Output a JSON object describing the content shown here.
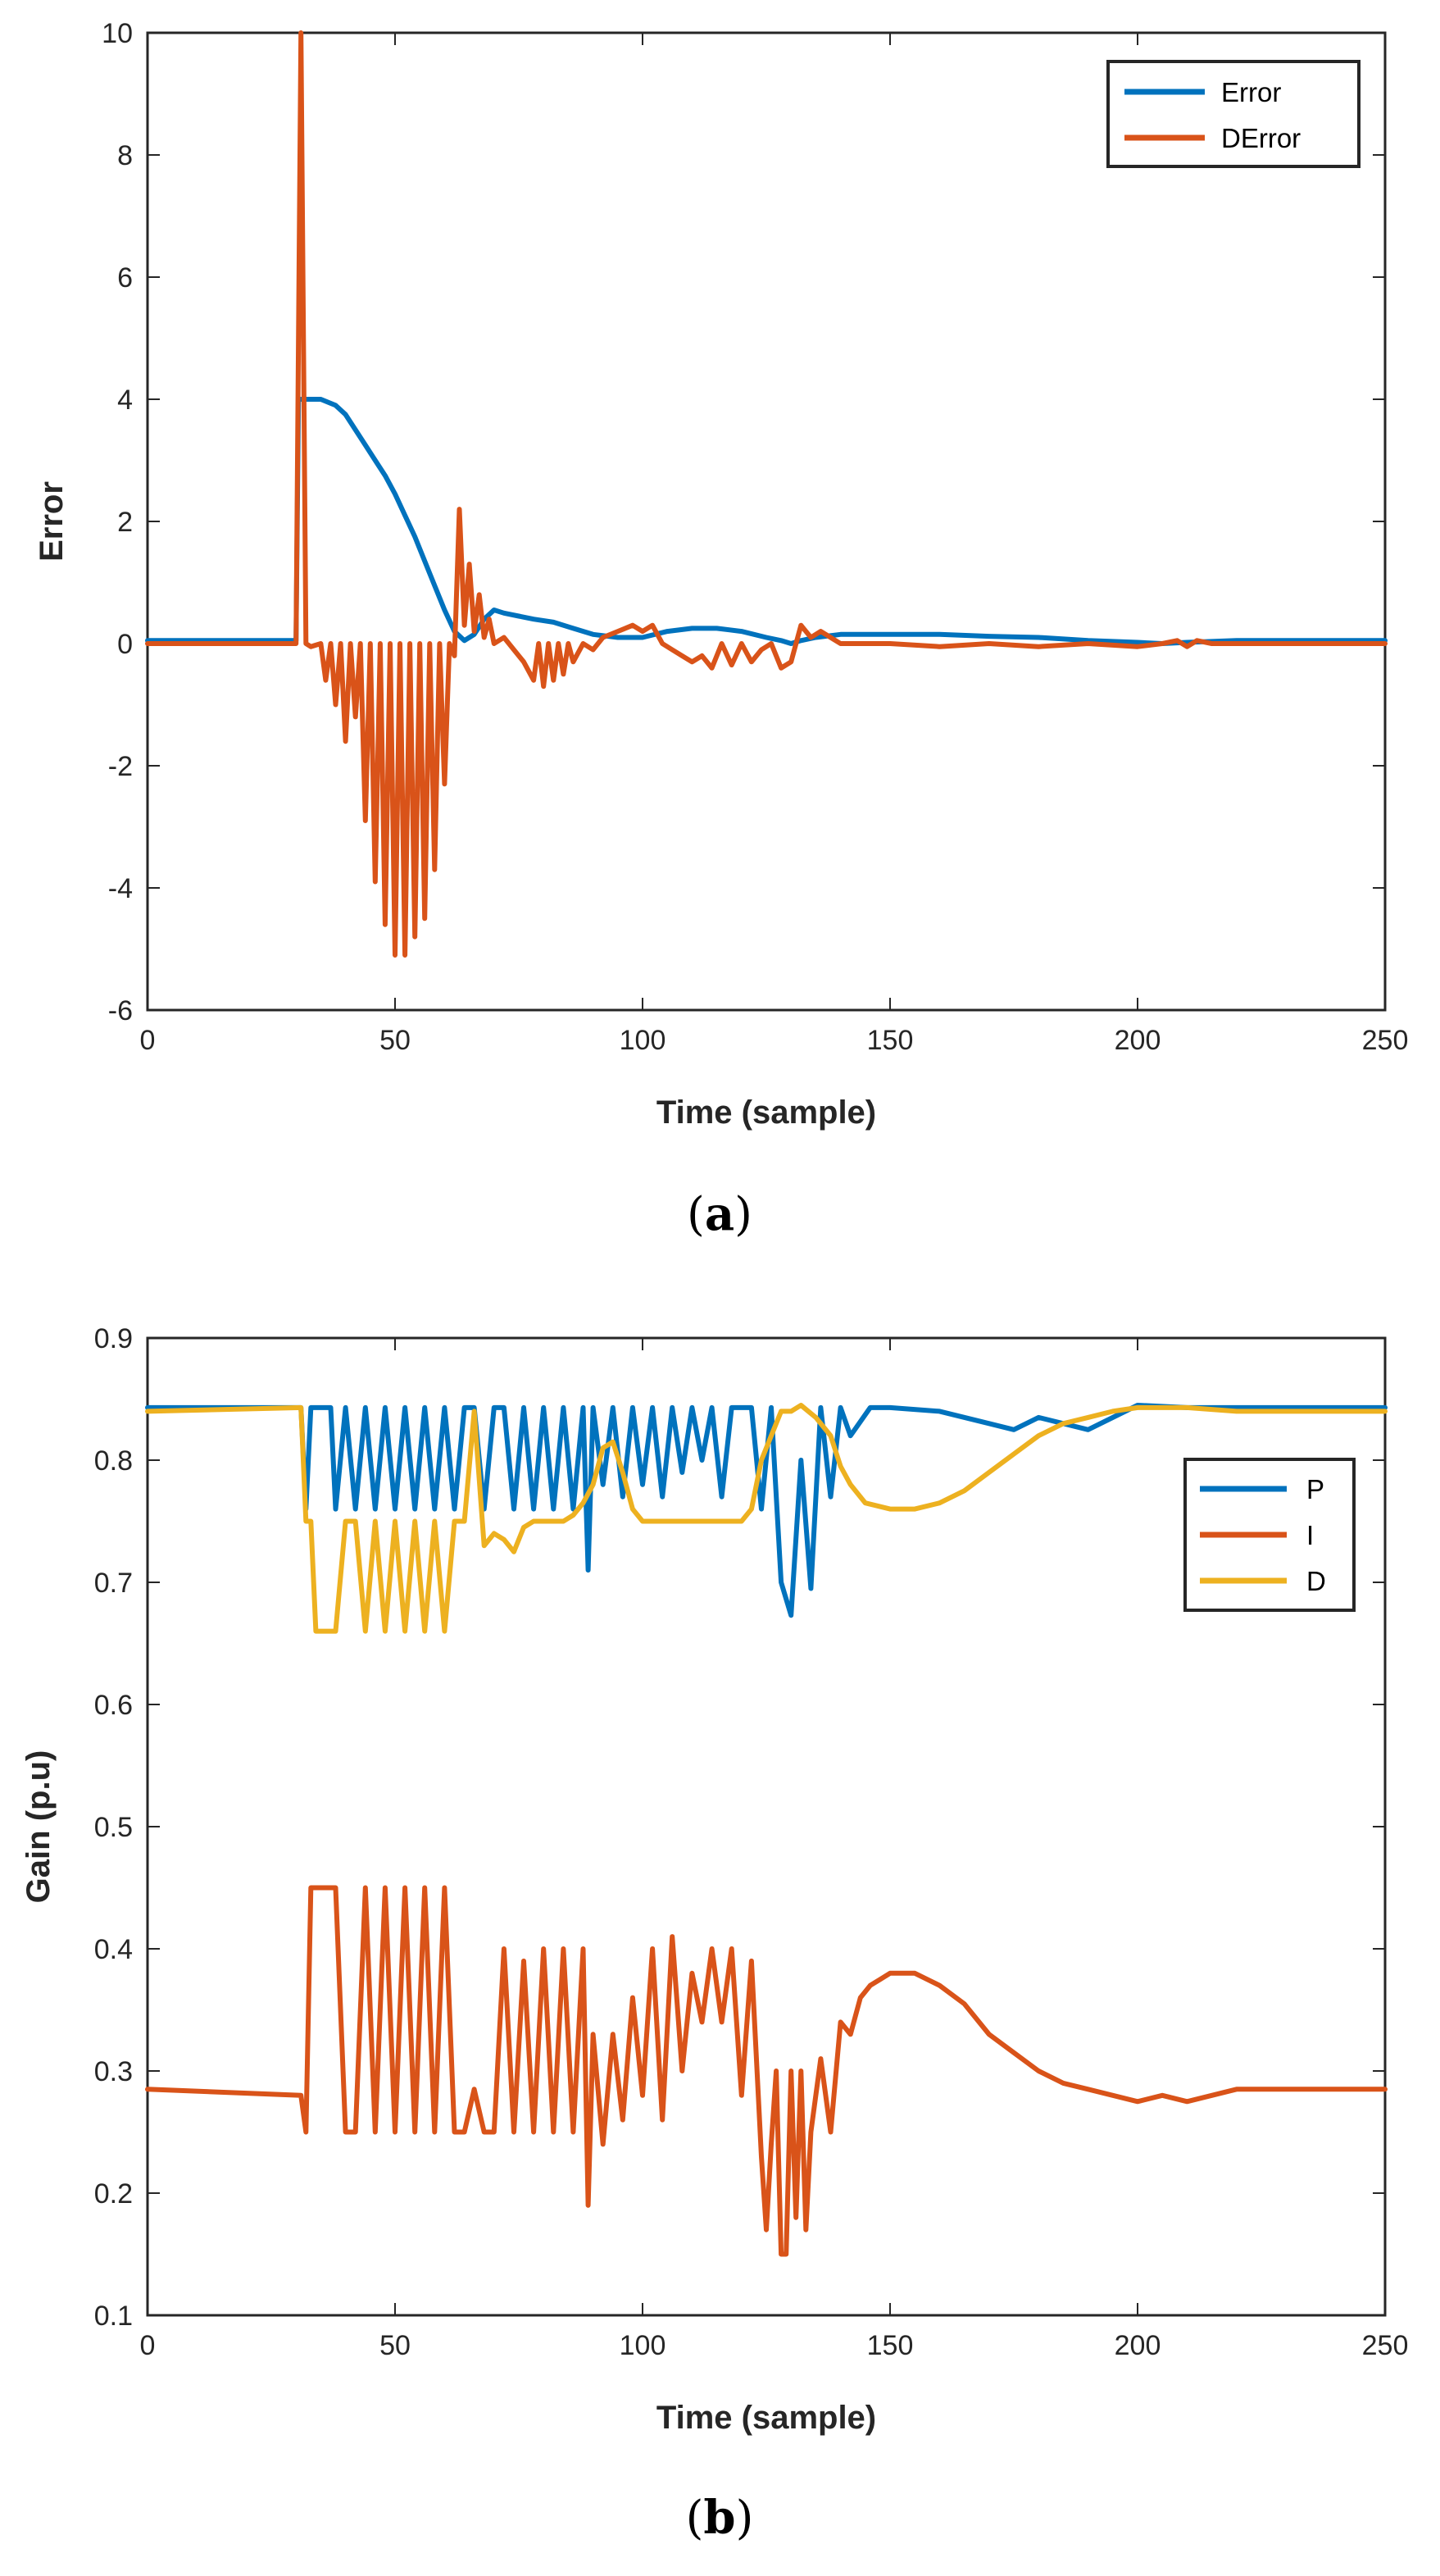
{
  "colors": {
    "blue": "#0072bd",
    "orange": "#d95319",
    "yellow": "#edb120",
    "axis": "#262626"
  },
  "chart_data": [
    {
      "id": "a",
      "type": "line",
      "caption": "a",
      "xlabel": "Time (sample)",
      "ylabel": "Error",
      "xlim": [
        0,
        250
      ],
      "ylim": [
        -6,
        10
      ],
      "xticks": [
        0,
        50,
        100,
        150,
        200,
        250
      ],
      "yticks": [
        -6,
        -4,
        -2,
        0,
        2,
        4,
        6,
        8,
        10
      ],
      "legend": "top-right",
      "series": [
        {
          "name": "Error",
          "color": "#0072bd",
          "x": [
            0,
            30,
            30.5,
            31,
            35,
            38,
            40,
            42,
            44,
            46,
            48,
            50,
            52,
            54,
            56,
            58,
            60,
            62,
            64,
            66,
            68,
            70,
            72,
            75,
            78,
            82,
            86,
            90,
            95,
            100,
            105,
            110,
            115,
            120,
            125,
            128,
            130,
            132,
            135,
            140,
            150,
            160,
            170,
            180,
            190,
            200,
            205,
            210,
            220,
            250
          ],
          "y": [
            0.05,
            0.05,
            4.0,
            4.0,
            4.0,
            3.9,
            3.75,
            3.5,
            3.25,
            3.0,
            2.75,
            2.45,
            2.1,
            1.75,
            1.35,
            0.95,
            0.55,
            0.2,
            0.05,
            0.15,
            0.4,
            0.55,
            0.5,
            0.45,
            0.4,
            0.35,
            0.25,
            0.15,
            0.1,
            0.1,
            0.2,
            0.25,
            0.25,
            0.2,
            0.1,
            0.05,
            0.0,
            0.05,
            0.1,
            0.15,
            0.15,
            0.15,
            0.12,
            0.1,
            0.05,
            0.02,
            0.0,
            0.02,
            0.05,
            0.05
          ]
        },
        {
          "name": "DError",
          "color": "#d95319",
          "x": [
            0,
            29,
            30,
            31,
            32,
            33,
            35,
            36,
            37,
            38,
            39,
            40,
            41,
            42,
            43,
            44,
            45,
            46,
            47,
            48,
            49,
            50,
            51,
            52,
            53,
            54,
            55,
            56,
            57,
            58,
            59,
            60,
            61,
            62,
            63,
            64,
            65,
            66,
            67,
            68,
            69,
            70,
            72,
            74,
            76,
            78,
            79,
            80,
            81,
            82,
            83,
            84,
            85,
            86,
            88,
            90,
            92,
            95,
            98,
            100,
            102,
            104,
            106,
            108,
            110,
            112,
            114,
            116,
            118,
            120,
            122,
            124,
            126,
            128,
            130,
            132,
            134,
            136,
            140,
            150,
            160,
            170,
            180,
            190,
            200,
            205,
            208,
            210,
            212,
            215,
            220,
            250
          ],
          "y": [
            0.0,
            0.0,
            0.0,
            10.0,
            0.0,
            -0.05,
            0.0,
            -0.6,
            0.0,
            -1.0,
            0.0,
            -1.6,
            0.0,
            -1.2,
            0.0,
            -2.9,
            0.0,
            -3.9,
            0.0,
            -4.6,
            0.0,
            -5.1,
            0.0,
            -5.1,
            0.0,
            -4.8,
            0.0,
            -4.5,
            0.0,
            -3.7,
            0.0,
            -2.3,
            0.0,
            -0.2,
            2.2,
            0.3,
            1.3,
            0.2,
            0.8,
            0.1,
            0.4,
            0.0,
            0.1,
            -0.1,
            -0.3,
            -0.6,
            0.0,
            -0.7,
            0.0,
            -0.6,
            0.0,
            -0.5,
            0.0,
            -0.3,
            0.0,
            -0.1,
            0.1,
            0.2,
            0.3,
            0.2,
            0.3,
            0.0,
            -0.1,
            -0.2,
            -0.3,
            -0.2,
            -0.4,
            0.0,
            -0.35,
            0.0,
            -0.3,
            -0.1,
            0.0,
            -0.4,
            -0.3,
            0.3,
            0.1,
            0.2,
            0.0,
            0.0,
            -0.05,
            0.0,
            -0.05,
            0.0,
            -0.05,
            0.0,
            0.05,
            -0.05,
            0.05,
            0.0,
            0.0,
            0.0
          ]
        }
      ]
    },
    {
      "id": "b",
      "type": "line",
      "caption": "b",
      "xlabel": "Time (sample)",
      "ylabel": "Gain (p.u)",
      "xlim": [
        0,
        250
      ],
      "ylim": [
        0.1,
        0.9
      ],
      "xticks": [
        0,
        50,
        100,
        150,
        200,
        250
      ],
      "yticks": [
        0.1,
        0.2,
        0.3,
        0.4,
        0.5,
        0.6,
        0.7,
        0.8,
        0.9
      ],
      "legend": "right",
      "series": [
        {
          "name": "P",
          "color": "#0072bd",
          "x": [
            0,
            31,
            32,
            33,
            34,
            37,
            38,
            40,
            42,
            44,
            46,
            48,
            50,
            52,
            54,
            56,
            58,
            60,
            62,
            64,
            66,
            68,
            70,
            72,
            74,
            76,
            78,
            80,
            82,
            84,
            86,
            88,
            89,
            90,
            92,
            94,
            96,
            98,
            100,
            102,
            104,
            106,
            108,
            110,
            112,
            114,
            116,
            118,
            120,
            122,
            124,
            126,
            128,
            130,
            132,
            134,
            136,
            138,
            140,
            142,
            146,
            150,
            160,
            170,
            175,
            180,
            190,
            200,
            210,
            220,
            250
          ],
          "y": [
            0.843,
            0.843,
            0.76,
            0.843,
            0.843,
            0.843,
            0.76,
            0.843,
            0.76,
            0.843,
            0.76,
            0.843,
            0.76,
            0.843,
            0.76,
            0.843,
            0.76,
            0.843,
            0.76,
            0.843,
            0.843,
            0.76,
            0.843,
            0.843,
            0.76,
            0.843,
            0.76,
            0.843,
            0.76,
            0.843,
            0.76,
            0.843,
            0.71,
            0.843,
            0.78,
            0.843,
            0.77,
            0.843,
            0.78,
            0.843,
            0.77,
            0.843,
            0.79,
            0.843,
            0.8,
            0.843,
            0.77,
            0.843,
            0.843,
            0.843,
            0.76,
            0.843,
            0.7,
            0.673,
            0.8,
            0.695,
            0.843,
            0.77,
            0.843,
            0.82,
            0.843,
            0.843,
            0.84,
            0.83,
            0.825,
            0.835,
            0.825,
            0.845,
            0.843,
            0.843,
            0.843
          ]
        },
        {
          "name": "I",
          "color": "#d95319",
          "x": [
            0,
            31,
            32,
            33,
            34,
            36,
            38,
            40,
            42,
            44,
            46,
            48,
            50,
            52,
            54,
            56,
            58,
            60,
            62,
            64,
            66,
            68,
            70,
            72,
            74,
            76,
            78,
            80,
            82,
            84,
            86,
            88,
            89,
            90,
            92,
            94,
            96,
            98,
            100,
            102,
            104,
            106,
            108,
            110,
            112,
            114,
            116,
            118,
            120,
            122,
            124,
            125,
            126,
            127,
            128,
            129,
            130,
            131,
            132,
            133,
            134,
            136,
            138,
            140,
            142,
            144,
            146,
            148,
            150,
            155,
            160,
            165,
            170,
            175,
            180,
            185,
            190,
            195,
            200,
            205,
            210,
            215,
            220,
            230,
            240,
            250
          ],
          "y": [
            0.285,
            0.28,
            0.25,
            0.45,
            0.45,
            0.45,
            0.45,
            0.25,
            0.25,
            0.45,
            0.25,
            0.45,
            0.25,
            0.45,
            0.25,
            0.45,
            0.25,
            0.45,
            0.25,
            0.25,
            0.285,
            0.25,
            0.25,
            0.4,
            0.25,
            0.39,
            0.25,
            0.4,
            0.25,
            0.4,
            0.25,
            0.4,
            0.19,
            0.33,
            0.24,
            0.33,
            0.26,
            0.36,
            0.28,
            0.4,
            0.26,
            0.41,
            0.3,
            0.38,
            0.34,
            0.4,
            0.34,
            0.4,
            0.28,
            0.39,
            0.23,
            0.17,
            0.24,
            0.3,
            0.15,
            0.15,
            0.3,
            0.18,
            0.3,
            0.17,
            0.25,
            0.31,
            0.25,
            0.34,
            0.33,
            0.36,
            0.37,
            0.375,
            0.38,
            0.38,
            0.37,
            0.355,
            0.33,
            0.315,
            0.3,
            0.29,
            0.285,
            0.28,
            0.275,
            0.28,
            0.275,
            0.28,
            0.285,
            0.285,
            0.285,
            0.285
          ]
        },
        {
          "name": "D",
          "color": "#edb120",
          "x": [
            0,
            31,
            32,
            33,
            34,
            36,
            38,
            40,
            42,
            44,
            46,
            48,
            50,
            52,
            54,
            56,
            58,
            60,
            62,
            64,
            66,
            68,
            70,
            72,
            74,
            76,
            78,
            80,
            84,
            86,
            88,
            90,
            92,
            94,
            96,
            98,
            100,
            105,
            110,
            115,
            120,
            122,
            124,
            126,
            128,
            130,
            132,
            135,
            138,
            140,
            142,
            145,
            150,
            155,
            160,
            165,
            170,
            175,
            180,
            185,
            190,
            195,
            200,
            210,
            220,
            250
          ],
          "y": [
            0.84,
            0.843,
            0.75,
            0.75,
            0.66,
            0.66,
            0.66,
            0.75,
            0.75,
            0.66,
            0.75,
            0.66,
            0.75,
            0.66,
            0.75,
            0.66,
            0.75,
            0.66,
            0.75,
            0.75,
            0.84,
            0.73,
            0.74,
            0.735,
            0.725,
            0.745,
            0.75,
            0.75,
            0.75,
            0.755,
            0.765,
            0.78,
            0.81,
            0.815,
            0.79,
            0.76,
            0.75,
            0.75,
            0.75,
            0.75,
            0.75,
            0.76,
            0.8,
            0.82,
            0.84,
            0.84,
            0.845,
            0.835,
            0.82,
            0.795,
            0.78,
            0.765,
            0.76,
            0.76,
            0.765,
            0.775,
            0.79,
            0.805,
            0.82,
            0.83,
            0.835,
            0.84,
            0.843,
            0.843,
            0.84,
            0.84
          ]
        }
      ]
    }
  ]
}
